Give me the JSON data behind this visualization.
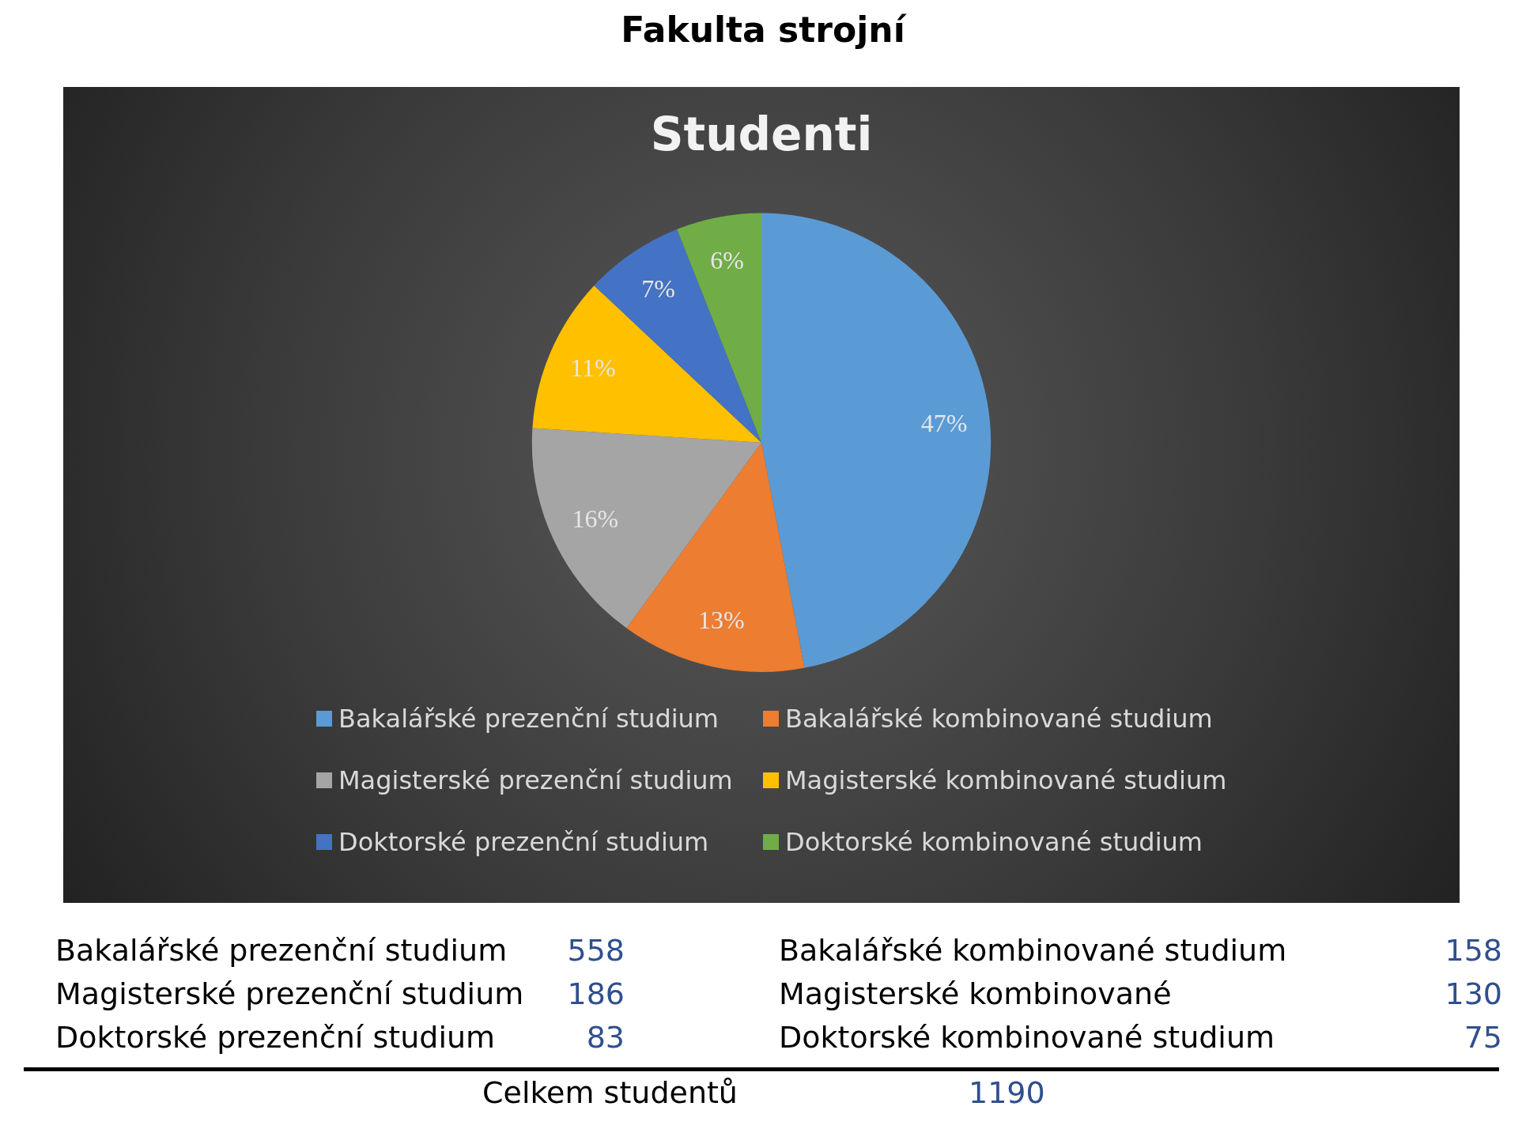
{
  "chart_data": {
    "type": "pie",
    "title": "Fakulta strojní",
    "subtitle": "Studenti",
    "categories": [
      "Bakalářské prezenční studium",
      "Bakalářské kombinované studium",
      "Magisterské prezenční studium",
      "Magisterské kombinované studium",
      "Doktorské prezenční studium",
      "Doktorské kombinované studium"
    ],
    "values": [
      47,
      13,
      16,
      11,
      7,
      6
    ],
    "colors": [
      "#5b9bd5",
      "#ed7d31",
      "#a5a5a5",
      "#ffc000",
      "#4472c4",
      "#70ad47"
    ],
    "value_labels": [
      "47%",
      "13%",
      "16%",
      "11%",
      "7%",
      "6%"
    ],
    "legend": "bottom",
    "annotations": [
      "Bakalářské prezenční studium",
      "558",
      "Bakalářské kombinované studium",
      "158",
      "Magisterské prezenční studium",
      "186",
      "Magisterské kombinované",
      "130",
      "Doktorské prezenční studium",
      "83",
      "Doktorské kombinované studium",
      "75",
      "Celkem studentů",
      "1190"
    ]
  }
}
